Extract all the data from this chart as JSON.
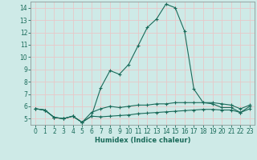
{
  "title": "",
  "xlabel": "Humidex (Indice chaleur)",
  "ylabel": "",
  "background_color": "#ceeae7",
  "grid_color": "#e8c8c8",
  "line_color": "#1a6b5a",
  "spine_color": "#8a9a99",
  "x_values": [
    0,
    1,
    2,
    3,
    4,
    5,
    6,
    7,
    8,
    9,
    10,
    11,
    12,
    13,
    14,
    15,
    16,
    17,
    18,
    19,
    20,
    21,
    22,
    23
  ],
  "y_main": [
    5.8,
    5.7,
    5.1,
    5.0,
    5.2,
    4.7,
    5.2,
    7.5,
    8.9,
    8.6,
    9.4,
    10.9,
    12.4,
    13.1,
    14.3,
    14.0,
    12.1,
    7.4,
    6.3,
    6.2,
    5.9,
    5.9,
    5.5,
    6.0
  ],
  "y_mid": [
    5.8,
    5.7,
    5.1,
    5.0,
    5.2,
    4.7,
    5.5,
    5.8,
    6.0,
    5.9,
    6.0,
    6.1,
    6.1,
    6.2,
    6.2,
    6.3,
    6.3,
    6.3,
    6.3,
    6.3,
    6.2,
    6.1,
    5.8,
    6.1
  ],
  "y_low": [
    5.8,
    5.7,
    5.1,
    5.0,
    5.2,
    4.7,
    5.2,
    5.15,
    5.2,
    5.25,
    5.3,
    5.4,
    5.45,
    5.5,
    5.55,
    5.6,
    5.65,
    5.7,
    5.75,
    5.75,
    5.7,
    5.7,
    5.5,
    5.8
  ],
  "ylim": [
    4.5,
    14.5
  ],
  "xlim": [
    -0.5,
    23.5
  ],
  "yticks": [
    5,
    6,
    7,
    8,
    9,
    10,
    11,
    12,
    13,
    14
  ],
  "xticks": [
    0,
    1,
    2,
    3,
    4,
    5,
    6,
    7,
    8,
    9,
    10,
    11,
    12,
    13,
    14,
    15,
    16,
    17,
    18,
    19,
    20,
    21,
    22,
    23
  ]
}
